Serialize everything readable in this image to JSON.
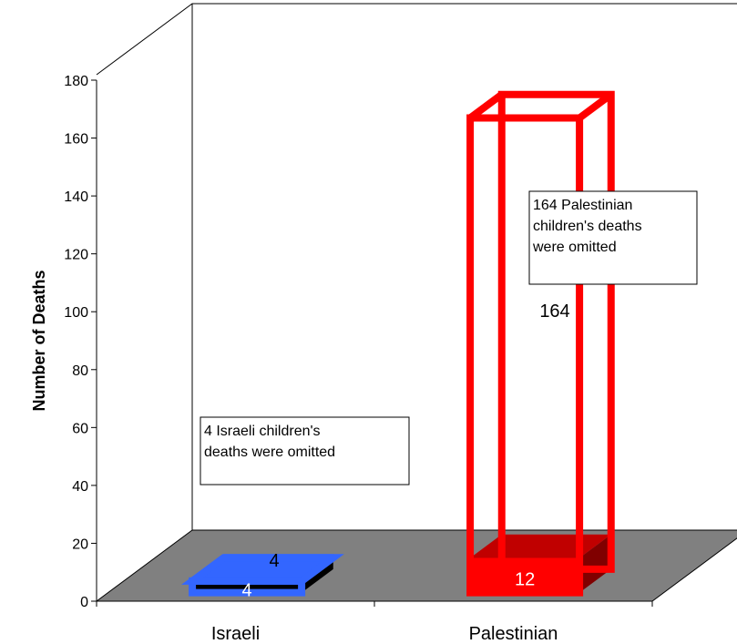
{
  "chart_data": {
    "type": "bar",
    "projection": "3d",
    "ylabel": "Number of Deaths",
    "ylim": [
      0,
      180
    ],
    "y_ticks": [
      0,
      20,
      40,
      60,
      80,
      100,
      120,
      140,
      160,
      180
    ],
    "categories": [
      "Israeli",
      "Palestinian"
    ],
    "series": [
      {
        "values": [
          4,
          12
        ],
        "colors": [
          "#3366ff",
          "#ff0000"
        ],
        "style": "solid"
      },
      {
        "values": [
          4,
          164
        ],
        "colors": [
          "#3366ff",
          "#ff0000"
        ],
        "style": "outline"
      }
    ],
    "data_labels": {
      "solid": [
        "4",
        "12"
      ],
      "outline": [
        "4",
        "164"
      ]
    },
    "annotations": [
      {
        "category": "Israeli",
        "lines": [
          "4 Israeli children's",
          "deaths were omitted"
        ]
      },
      {
        "category": "Palestinian",
        "lines": [
          "164 Palestinian",
          "children's deaths",
          "were omitted"
        ]
      }
    ],
    "floor_color": "#808080",
    "dark_red": "#800000",
    "grid": false
  }
}
